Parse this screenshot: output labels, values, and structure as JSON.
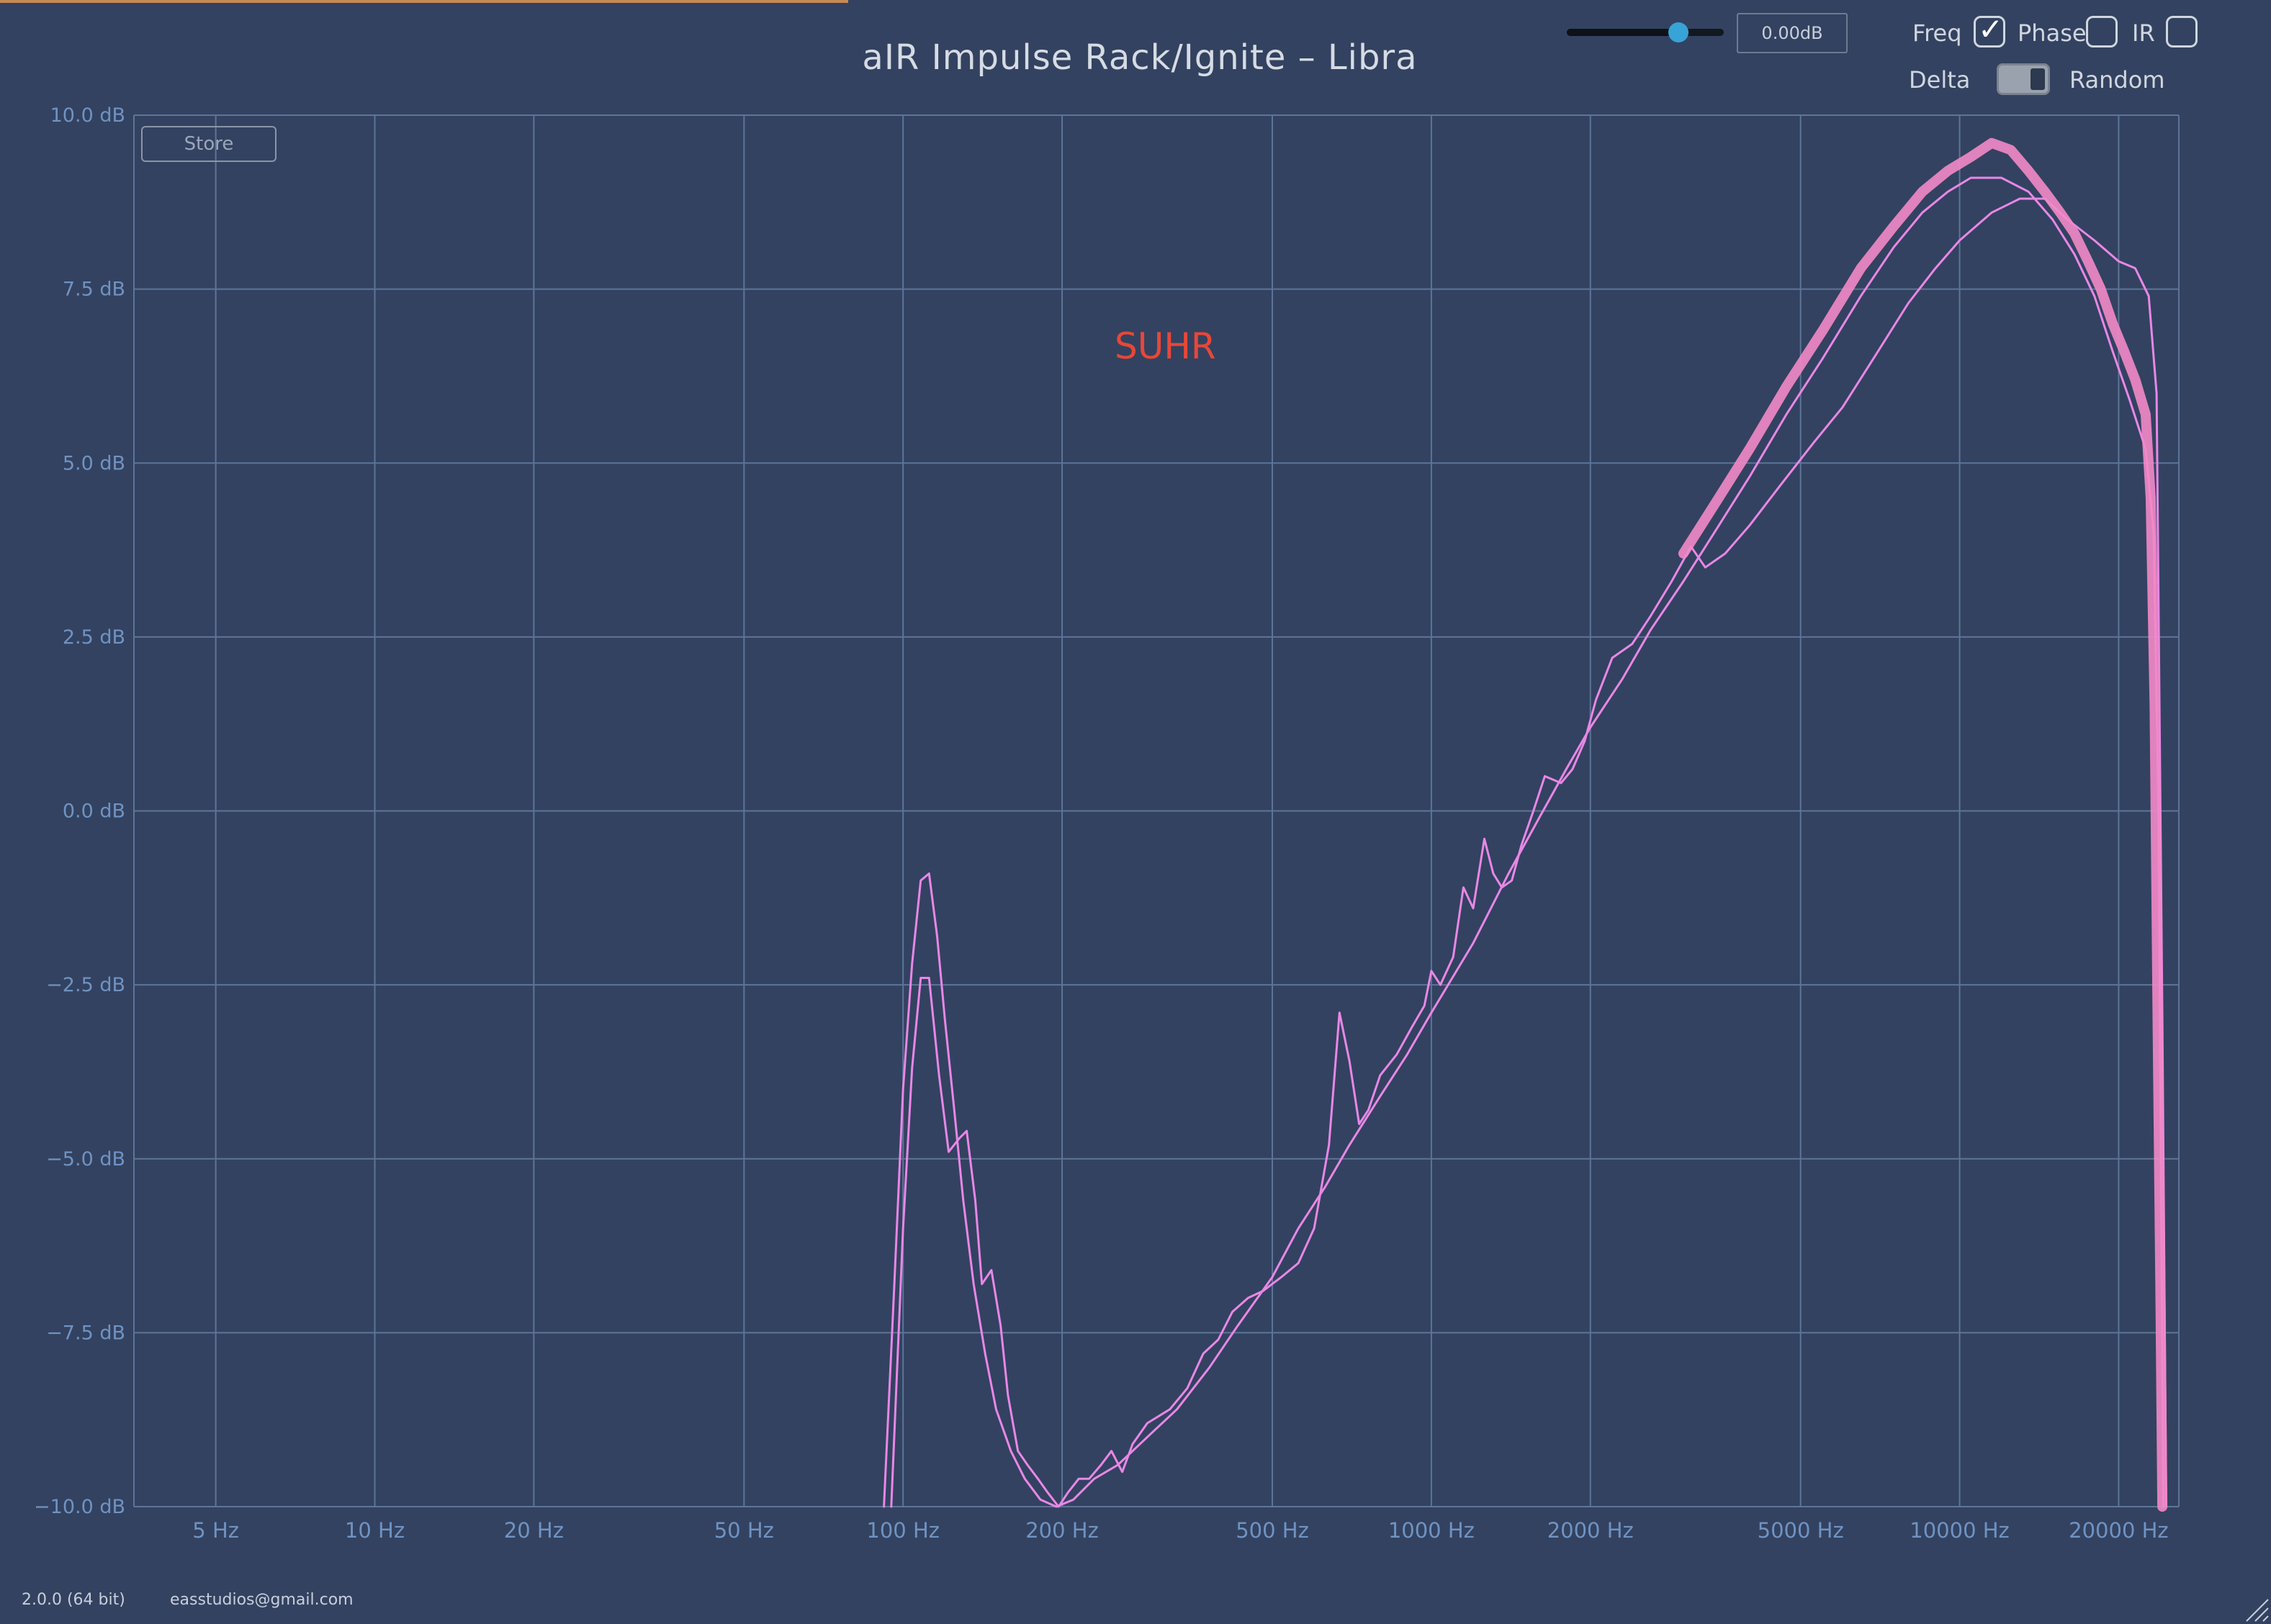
{
  "window": {
    "title": "aIR Impulse Rack/Ignite – Libra",
    "version": "2.0.0 (64 bit)",
    "contact": "easstudios@gmail.com"
  },
  "controls": {
    "gain_slider_value": 0.71,
    "gain_display": "0.00dB",
    "freq": {
      "label": "Freq",
      "checked": true
    },
    "phase": {
      "label": "Phase",
      "checked": false
    },
    "ir": {
      "label": "IR",
      "checked": false
    },
    "delta": {
      "label": "Delta",
      "on": false
    },
    "random_label": "Random",
    "store_label": "Store"
  },
  "annotation": "SUHR",
  "colors": {
    "background": "#334260",
    "grid": "#5d7598",
    "axis_text": "#6f93c3",
    "trace_a": "#e987e7",
    "trace_b": "#f28ac8",
    "annotation": "#e84738",
    "slider_knob": "#38a3d6"
  },
  "chart_data": {
    "type": "line",
    "x_scale": "log",
    "xlim": [
      3.5,
      26000
    ],
    "ylim": [
      -10,
      10
    ],
    "x_ticks": [
      {
        "value": 5,
        "label": "5 Hz"
      },
      {
        "value": 10,
        "label": "10 Hz"
      },
      {
        "value": 20,
        "label": "20 Hz"
      },
      {
        "value": 50,
        "label": "50 Hz"
      },
      {
        "value": 100,
        "label": "100 Hz"
      },
      {
        "value": 200,
        "label": "200 Hz"
      },
      {
        "value": 500,
        "label": "500 Hz"
      },
      {
        "value": 1000,
        "label": "1000 Hz"
      },
      {
        "value": 2000,
        "label": "2000 Hz"
      },
      {
        "value": 5000,
        "label": "5000 Hz"
      },
      {
        "value": 10000,
        "label": "10000 Hz"
      },
      {
        "value": 20000,
        "label": "20000 Hz"
      }
    ],
    "y_ticks": [
      {
        "value": 10,
        "label": "10.0 dB"
      },
      {
        "value": 7.5,
        "label": "7.5 dB"
      },
      {
        "value": 5,
        "label": "5.0 dB"
      },
      {
        "value": 2.5,
        "label": "2.5 dB"
      },
      {
        "value": 0,
        "label": "0.0 dB"
      },
      {
        "value": -2.5,
        "label": "−2.5 dB"
      },
      {
        "value": -5,
        "label": "−5.0 dB"
      },
      {
        "value": -7.5,
        "label": "−7.5 dB"
      },
      {
        "value": -10,
        "label": "−10.0 dB"
      }
    ],
    "grid": true,
    "series": [
      {
        "color": "#e987e7",
        "points": [
          [
            95,
            -10
          ],
          [
            100,
            -6
          ],
          [
            104,
            -3.7
          ],
          [
            108,
            -2.4
          ],
          [
            112,
            -2.4
          ],
          [
            117,
            -3.8
          ],
          [
            122,
            -4.9
          ],
          [
            128,
            -4.7
          ],
          [
            132,
            -4.6
          ],
          [
            137,
            -5.6
          ],
          [
            141,
            -6.8
          ],
          [
            147,
            -6.6
          ],
          [
            153,
            -7.4
          ],
          [
            158,
            -8.4
          ],
          [
            165,
            -9.2
          ],
          [
            172,
            -9.4
          ],
          [
            180,
            -9.6
          ],
          [
            188,
            -9.8
          ],
          [
            197,
            -10
          ],
          [
            205,
            -9.8
          ],
          [
            215,
            -9.6
          ],
          [
            225,
            -9.6
          ],
          [
            237,
            -9.4
          ],
          [
            248,
            -9.2
          ],
          [
            260,
            -9.5
          ],
          [
            272,
            -9.1
          ],
          [
            290,
            -8.8
          ],
          [
            320,
            -8.6
          ],
          [
            345,
            -8.3
          ],
          [
            370,
            -7.8
          ],
          [
            395,
            -7.6
          ],
          [
            420,
            -7.2
          ],
          [
            450,
            -7
          ],
          [
            480,
            -6.9
          ],
          [
            520,
            -6.7
          ],
          [
            560,
            -6.5
          ],
          [
            600,
            -6
          ],
          [
            640,
            -4.8
          ],
          [
            670,
            -2.9
          ],
          [
            700,
            -3.6
          ],
          [
            730,
            -4.5
          ],
          [
            760,
            -4.3
          ],
          [
            800,
            -3.8
          ],
          [
            860,
            -3.5
          ],
          [
            920,
            -3.1
          ],
          [
            970,
            -2.8
          ],
          [
            1000,
            -2.3
          ],
          [
            1040,
            -2.5
          ],
          [
            1100,
            -2.1
          ],
          [
            1150,
            -1.1
          ],
          [
            1200,
            -1.4
          ],
          [
            1260,
            -0.4
          ],
          [
            1310,
            -0.9
          ],
          [
            1360,
            -1.1
          ],
          [
            1420,
            -1
          ],
          [
            1480,
            -0.5
          ],
          [
            1560,
            0
          ],
          [
            1640,
            0.5
          ],
          [
            1760,
            0.4
          ],
          [
            1850,
            0.6
          ],
          [
            1950,
            1
          ],
          [
            2050,
            1.6
          ],
          [
            2200,
            2.2
          ],
          [
            2400,
            2.4
          ],
          [
            2600,
            2.8
          ],
          [
            2850,
            3.3
          ],
          [
            3100,
            3.8
          ],
          [
            3300,
            3.5
          ],
          [
            3600,
            3.7
          ],
          [
            4000,
            4.1
          ],
          [
            4600,
            4.7
          ],
          [
            5300,
            5.3
          ],
          [
            6000,
            5.8
          ],
          [
            7000,
            6.6
          ],
          [
            8000,
            7.3
          ],
          [
            9000,
            7.8
          ],
          [
            10000,
            8.2
          ],
          [
            11500,
            8.6
          ],
          [
            13000,
            8.8
          ],
          [
            14500,
            8.8
          ],
          [
            16000,
            8.5
          ],
          [
            18000,
            8.2
          ],
          [
            20000,
            7.9
          ],
          [
            21500,
            7.8
          ],
          [
            22800,
            7.4
          ],
          [
            23600,
            6
          ],
          [
            24200,
            -3
          ],
          [
            24600,
            -10
          ]
        ]
      },
      {
        "color": "#e987e7",
        "points": [
          [
            92,
            -10
          ],
          [
            96,
            -7
          ],
          [
            100,
            -4
          ],
          [
            104,
            -2.2
          ],
          [
            108,
            -1
          ],
          [
            112,
            -0.9
          ],
          [
            116,
            -1.8
          ],
          [
            120,
            -3
          ],
          [
            125,
            -4.3
          ],
          [
            130,
            -5.6
          ],
          [
            136,
            -6.8
          ],
          [
            143,
            -7.8
          ],
          [
            150,
            -8.6
          ],
          [
            160,
            -9.2
          ],
          [
            170,
            -9.6
          ],
          [
            182,
            -9.9
          ],
          [
            195,
            -10
          ],
          [
            210,
            -9.9
          ],
          [
            230,
            -9.6
          ],
          [
            255,
            -9.4
          ],
          [
            290,
            -9
          ],
          [
            330,
            -8.6
          ],
          [
            380,
            -8
          ],
          [
            430,
            -7.4
          ],
          [
            500,
            -6.7
          ],
          [
            560,
            -6
          ],
          [
            630,
            -5.4
          ],
          [
            700,
            -4.8
          ],
          [
            800,
            -4.1
          ],
          [
            900,
            -3.5
          ],
          [
            1000,
            -2.9
          ],
          [
            1200,
            -1.9
          ],
          [
            1400,
            -0.9
          ],
          [
            1600,
            -0.1
          ],
          [
            1800,
            0.6
          ],
          [
            2000,
            1.2
          ],
          [
            2300,
            1.9
          ],
          [
            2600,
            2.6
          ],
          [
            3000,
            3.3
          ],
          [
            3500,
            4.1
          ],
          [
            4000,
            4.8
          ],
          [
            4700,
            5.7
          ],
          [
            5500,
            6.5
          ],
          [
            6500,
            7.4
          ],
          [
            7500,
            8.1
          ],
          [
            8500,
            8.6
          ],
          [
            9500,
            8.9
          ],
          [
            10500,
            9.1
          ],
          [
            12000,
            9.1
          ],
          [
            13500,
            8.9
          ],
          [
            15000,
            8.5
          ],
          [
            16500,
            8
          ],
          [
            18000,
            7.4
          ],
          [
            19500,
            6.6
          ],
          [
            21000,
            5.9
          ],
          [
            22500,
            5.2
          ],
          [
            23300,
            4
          ],
          [
            23800,
            0
          ],
          [
            24100,
            -6
          ],
          [
            24300,
            -10
          ]
        ]
      },
      {
        "color": "#f28ac8",
        "points": [
          [
            3000,
            3.7
          ],
          [
            3500,
            4.5
          ],
          [
            4000,
            5.2
          ],
          [
            4700,
            6.1
          ],
          [
            5500,
            6.9
          ],
          [
            6500,
            7.8
          ],
          [
            7500,
            8.4
          ],
          [
            8500,
            8.9
          ],
          [
            9500,
            9.2
          ],
          [
            10500,
            9.4
          ],
          [
            11500,
            9.6
          ],
          [
            12500,
            9.5
          ],
          [
            13500,
            9.2
          ],
          [
            14500,
            8.9
          ],
          [
            15500,
            8.6
          ],
          [
            16500,
            8.3
          ],
          [
            17500,
            7.9
          ],
          [
            18500,
            7.5
          ],
          [
            19500,
            7
          ],
          [
            20500,
            6.6
          ],
          [
            21500,
            6.2
          ],
          [
            22500,
            5.7
          ],
          [
            23000,
            4.5
          ],
          [
            23400,
            1.5
          ],
          [
            23700,
            -3
          ],
          [
            24000,
            -7
          ],
          [
            24200,
            -10
          ]
        ]
      }
    ]
  }
}
